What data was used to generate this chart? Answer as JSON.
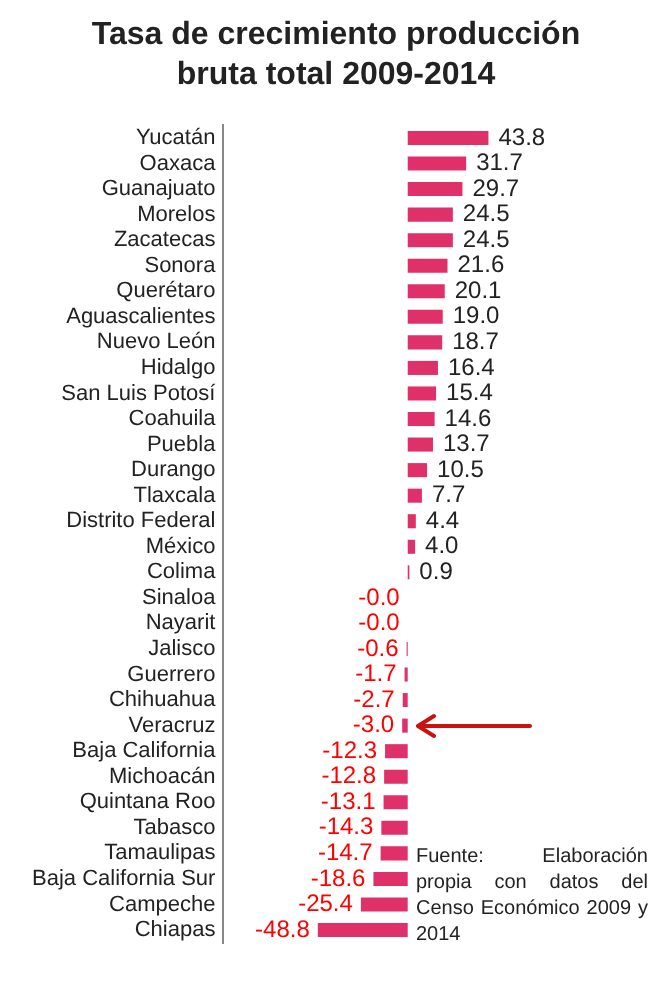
{
  "chart_data": {
    "type": "bar",
    "orientation": "horizontal",
    "title": "Tasa de crecimiento producción bruta total 2009-2014",
    "categories": [
      "Yucatán",
      "Oaxaca",
      "Guanajuato",
      "Morelos",
      "Zacatecas",
      "Sonora",
      "Querétaro",
      "Aguascalientes",
      "Nuevo León",
      "Hidalgo",
      "San Luis Potosí",
      "Coahuila",
      "Puebla",
      "Durango",
      "Tlaxcala",
      "Distrito Federal",
      "México",
      "Colima",
      "Sinaloa",
      "Nayarit",
      "Jalisco",
      "Guerrero",
      "Chihuahua",
      "Veracruz",
      "Baja California",
      "Michoacán",
      "Quintana Roo",
      "Tabasco",
      "Tamaulipas",
      "Baja California Sur",
      "Campeche",
      "Chiapas"
    ],
    "values": [
      43.8,
      31.7,
      29.7,
      24.5,
      24.5,
      21.6,
      20.1,
      19.0,
      18.7,
      16.4,
      15.4,
      14.6,
      13.7,
      10.5,
      7.7,
      4.4,
      4.0,
      0.9,
      -0.0,
      -0.0,
      -0.6,
      -1.7,
      -2.7,
      -3.0,
      -12.3,
      -12.8,
      -13.1,
      -14.3,
      -14.7,
      -18.6,
      -25.4,
      -48.8
    ],
    "value_labels": [
      "43.8",
      "31.7",
      "29.7",
      "24.5",
      "24.5",
      "21.6",
      "20.1",
      "19.0",
      "18.7",
      "16.4",
      "15.4",
      "14.6",
      "13.7",
      "10.5",
      "7.7",
      "4.4",
      "4.0",
      "0.9",
      "-0.0",
      "-0.0",
      "-0.6",
      "-1.7",
      "-2.7",
      "-3.0",
      "-12.3",
      "-12.8",
      "-13.1",
      "-14.3",
      "-14.7",
      "-18.6",
      "-25.4",
      "-48.8"
    ],
    "color": "#e0306a",
    "annotations": [
      "Fuente: Elaboración propia con datos del Censo Económico 2009 y 2014"
    ],
    "tick_labels": "y",
    "grid": false,
    "legend": false
  }
}
